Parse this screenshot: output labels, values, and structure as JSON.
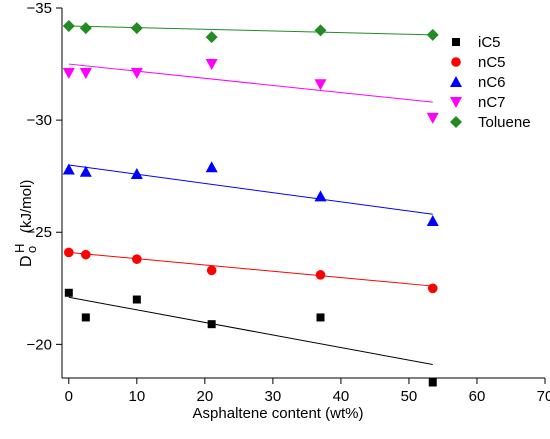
{
  "chart_data": {
    "type": "scatter",
    "xlabel": "Asphaltene content (wt%)",
    "ylabel_main": "D",
    "ylabel_sup": "H",
    "ylabel_sub": "o",
    "ylabel_unit": "(kJ/mol)",
    "xlim": [
      -1,
      70
    ],
    "ylim": [
      -18.5,
      -35
    ],
    "x_ticks": [
      0,
      10,
      20,
      30,
      40,
      50,
      60,
      70
    ],
    "y_ticks": [
      -35,
      -30,
      -25,
      -20
    ],
    "x_tick_labels": [
      "0",
      "10",
      "20",
      "30",
      "40",
      "50",
      "60",
      "70"
    ],
    "y_tick_labels": [
      "−35",
      "−30",
      "−25",
      "−20"
    ],
    "grid": false,
    "legend_position": "top-right",
    "series": [
      {
        "name": "iC5",
        "marker": "square",
        "color": "#000000",
        "line_color": "#000000",
        "points": [
          [
            0,
            -22.3
          ],
          [
            2.5,
            -21.2
          ],
          [
            10,
            -22.0
          ],
          [
            21,
            -20.9
          ],
          [
            37,
            -21.2
          ],
          [
            53.5,
            -18.3
          ]
        ],
        "fit": [
          [
            0,
            -22.1
          ],
          [
            53.5,
            -19.1
          ]
        ]
      },
      {
        "name": "nC5",
        "marker": "circle",
        "color": "#ff0000",
        "line_color": "#ff0000",
        "points": [
          [
            0,
            -24.1
          ],
          [
            2.5,
            -24.0
          ],
          [
            10,
            -23.8
          ],
          [
            21,
            -23.3
          ],
          [
            37,
            -23.1
          ],
          [
            53.5,
            -22.5
          ]
        ],
        "fit": [
          [
            0,
            -24.1
          ],
          [
            53.5,
            -22.6
          ]
        ]
      },
      {
        "name": "nC6",
        "marker": "triangle-up",
        "color": "#0000ff",
        "line_color": "#0000ff",
        "points": [
          [
            0,
            -27.8
          ],
          [
            2.5,
            -27.7
          ],
          [
            10,
            -27.6
          ],
          [
            21,
            -27.9
          ],
          [
            37,
            -26.6
          ],
          [
            53.5,
            -25.5
          ]
        ],
        "fit": [
          [
            0,
            -28.0
          ],
          [
            53.5,
            -25.8
          ]
        ]
      },
      {
        "name": "nC7",
        "marker": "triangle-down",
        "color": "#ff00ff",
        "line_color": "#ff00ff",
        "points": [
          [
            0,
            -32.1
          ],
          [
            2.5,
            -32.1
          ],
          [
            10,
            -32.1
          ],
          [
            21,
            -32.5
          ],
          [
            37,
            -31.6
          ],
          [
            53.5,
            -30.1
          ]
        ],
        "fit": [
          [
            0,
            -32.5
          ],
          [
            53.5,
            -30.8
          ]
        ]
      },
      {
        "name": "Toluene",
        "marker": "diamond",
        "color": "#228b22",
        "line_color": "#228b22",
        "points": [
          [
            0,
            -34.2
          ],
          [
            2.5,
            -34.1
          ],
          [
            10,
            -34.1
          ],
          [
            21,
            -33.7
          ],
          [
            37,
            -34.0
          ],
          [
            53.5,
            -33.8
          ]
        ],
        "fit": [
          [
            0,
            -34.2
          ],
          [
            53.5,
            -33.8
          ]
        ]
      }
    ]
  }
}
